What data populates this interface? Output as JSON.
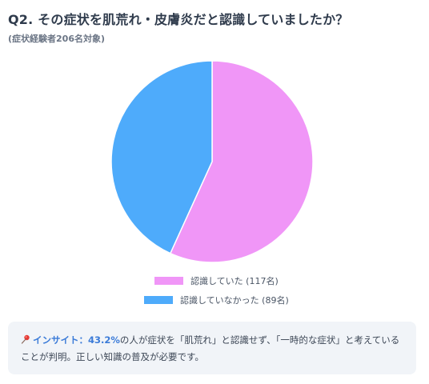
{
  "header": {
    "title": "Q2. その症状を肌荒れ・皮膚炎だと認識していましたか？",
    "subtitle": "(症状経験者206名対象)"
  },
  "chart_data": {
    "type": "pie",
    "title": "Q2. その症状を肌荒れ・皮膚炎だと認識していましたか？",
    "subtitle": "(症状経験者206名対象)",
    "start_angle_deg": 0,
    "direction": "clockwise",
    "legend_position": "bottom",
    "series": [
      {
        "name": "認識していた (117名)",
        "label": "認識していた",
        "value": 117,
        "color": "#f096f7"
      },
      {
        "name": "認識していなかった (89名)",
        "label": "認識していなかった",
        "value": 89,
        "color": "#4eabfb"
      }
    ]
  },
  "insight": {
    "icon": "pushpin-icon",
    "label": "インサイト：43.2%",
    "text_line1": "の人が症状を「肌荒れ」と認識せず、「一時的な症状」と考えている",
    "text_line2": "ことが判明。正しい知識の普及が必要です。"
  }
}
